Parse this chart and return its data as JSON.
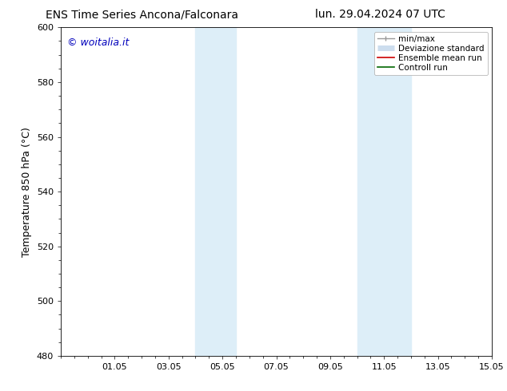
{
  "title_left": "ENS Time Series Ancona/Falconara",
  "title_right": "lun. 29.04.2024 07 UTC",
  "ylabel": "Temperature 850 hPa (°C)",
  "watermark": "© woitalia.it",
  "watermark_color": "#0000bb",
  "background_color": "#ffffff",
  "plot_bg_color": "#ffffff",
  "ylim": [
    480,
    600
  ],
  "yticks": [
    480,
    500,
    520,
    540,
    560,
    580,
    600
  ],
  "xlim": [
    0,
    16
  ],
  "xtick_labels": [
    "01.05",
    "03.05",
    "05.05",
    "07.05",
    "09.05",
    "11.05",
    "13.05",
    "15.05"
  ],
  "xtick_positions": [
    2,
    4,
    6,
    8,
    10,
    12,
    14,
    16
  ],
  "shaded_bands": [
    {
      "x_start": 5.0,
      "x_end": 6.5,
      "color": "#ddeef8"
    },
    {
      "x_start": 11.0,
      "x_end": 13.0,
      "color": "#ddeef8"
    }
  ],
  "legend_entries": [
    {
      "label": "min/max",
      "color": "#999999",
      "lw": 1.0,
      "style": "line_with_caps"
    },
    {
      "label": "Deviazione standard",
      "color": "#ccddee",
      "lw": 5,
      "style": "thick"
    },
    {
      "label": "Ensemble mean run",
      "color": "#cc0000",
      "lw": 1.2,
      "style": "line"
    },
    {
      "label": "Controll run",
      "color": "#006600",
      "lw": 1.2,
      "style": "line"
    }
  ],
  "title_fontsize": 10,
  "axis_fontsize": 9,
  "tick_fontsize": 8,
  "legend_fontsize": 7.5,
  "watermark_fontsize": 9
}
